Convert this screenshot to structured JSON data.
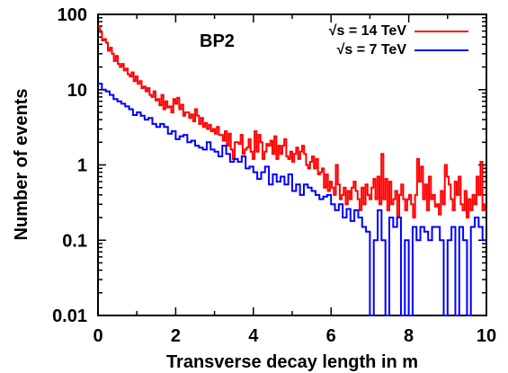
{
  "chart_data": {
    "type": "line",
    "xlabel": "Transverse decay length in m",
    "ylabel": "Number of events",
    "annotation": "BP2",
    "xlim": [
      0,
      10
    ],
    "ylim": [
      0.01,
      100
    ],
    "yscale": "log",
    "x_ticks": [
      "0",
      "2",
      "4",
      "6",
      "8",
      "10"
    ],
    "y_ticks": [
      "0.01",
      "0.1",
      "1",
      "10",
      "100"
    ],
    "legend_position": "top-right",
    "bin_width": 0.1,
    "series": [
      {
        "name": "√s = 14 TeV",
        "color": "#ff0000",
        "values": [
          70,
          58,
          45,
          47,
          42,
          33,
          36,
          30,
          24,
          28,
          22,
          20,
          22,
          18,
          19,
          16,
          15,
          17,
          13,
          15,
          12,
          13,
          10.5,
          11,
          9.5,
          10.5,
          8.5,
          8,
          9.5,
          7.2,
          7.5,
          6.2,
          8.5,
          5.5,
          7,
          5.8,
          6,
          5,
          7.5,
          6.5,
          7.8,
          5.5,
          6.3,
          4.5,
          5,
          5,
          4.2,
          4.7,
          3.8,
          5.5,
          4.5,
          3.5,
          4.2,
          3.2,
          3.6,
          3,
          3.4,
          2.8,
          3,
          2.6,
          3.2,
          2.5,
          2.5,
          2.1,
          2.8,
          1.8,
          2.6,
          1.6,
          1.2,
          2,
          2,
          1.9,
          2.5,
          1.4,
          1.6,
          1.7,
          2.2,
          1.5,
          1.2,
          2.8,
          1.5,
          2.5,
          2,
          1.2,
          1.5,
          1.9,
          1.8,
          2.1,
          1.4,
          2.4,
          1.2,
          1.8,
          1.4,
          1.8,
          2.2,
          1.3,
          1.2,
          1.5,
          1.1,
          1.4,
          1.7,
          1.2,
          1.5,
          1.8,
          1.4,
          1,
          0.9,
          1.1,
          1.3,
          0.9,
          1.2,
          0.75,
          0.8,
          0.9,
          0.5,
          0.75,
          0.45,
          0.6,
          0.5,
          0.4,
          1,
          0.55,
          0.35,
          0.4,
          0.5,
          0.3,
          0.45,
          0.35,
          0.5,
          0.6,
          0.45,
          0.35,
          0.25,
          0.5,
          0.3,
          0.55,
          0.4,
          0.35,
          0.5,
          0.65,
          0.35,
          0.7,
          0.3,
          1.4,
          0.35,
          0.65,
          0.25,
          0.6,
          0.3,
          0.35,
          0.45,
          0.2,
          0.4,
          0.55,
          0.35,
          0.25,
          0.35,
          0.4,
          0.3,
          0.2,
          0.4,
          1.2,
          0.6,
          0.95,
          0.35,
          0.55,
          0.25,
          0.7,
          0.35,
          0.4,
          0.28,
          0.3,
          0.22,
          0.45,
          0.3,
          1,
          0.7,
          0.55,
          0.35,
          0.25,
          0.6,
          0.4,
          0.7,
          0.3,
          0.25,
          0.45,
          0.2,
          0.35,
          0.25,
          0.4,
          0.3,
          0.7,
          0.4,
          1.1,
          0.25,
          0.3
        ]
      },
      {
        "name": "√s = 7 TeV",
        "color": "#0000ff",
        "values": [
          12,
          10,
          9.5,
          8.5,
          7.5,
          7,
          6.5,
          6,
          5.5,
          4.6,
          5,
          4.5,
          4,
          4.2,
          3.5,
          3.2,
          3.5,
          3.2,
          2.6,
          2.8,
          2.2,
          2.4,
          2.5,
          2,
          2.1,
          1.8,
          1.7,
          1.6,
          2,
          1.6,
          1.5,
          1.3,
          1.8,
          1.4,
          1.1,
          1.2,
          1.1,
          1.3,
          0.9,
          0.95,
          0.8,
          0.65,
          0.8,
          0.95,
          0.55,
          0.75,
          0.6,
          0.7,
          0.55,
          0.75,
          0.45,
          0.55,
          0.4,
          0.55,
          0.5,
          0.45,
          0.4,
          0.35,
          0.38,
          0.4,
          0.3,
          0.25,
          0.3,
          0.2,
          0.26,
          0.18,
          0.25,
          0.2,
          0.15,
          0.13,
          0.01,
          0.1,
          0.25,
          0.1,
          0.01,
          0.2,
          0.15,
          0.2,
          0.01,
          0.1,
          0.01,
          0.15,
          0.1,
          0.15,
          0.13,
          0.1,
          0.15,
          0.15,
          0.1,
          0.01,
          0.1,
          0.15,
          0.01,
          0.15,
          0.1,
          0.01,
          0.15,
          0.2,
          0.15,
          0.1
        ]
      }
    ]
  }
}
